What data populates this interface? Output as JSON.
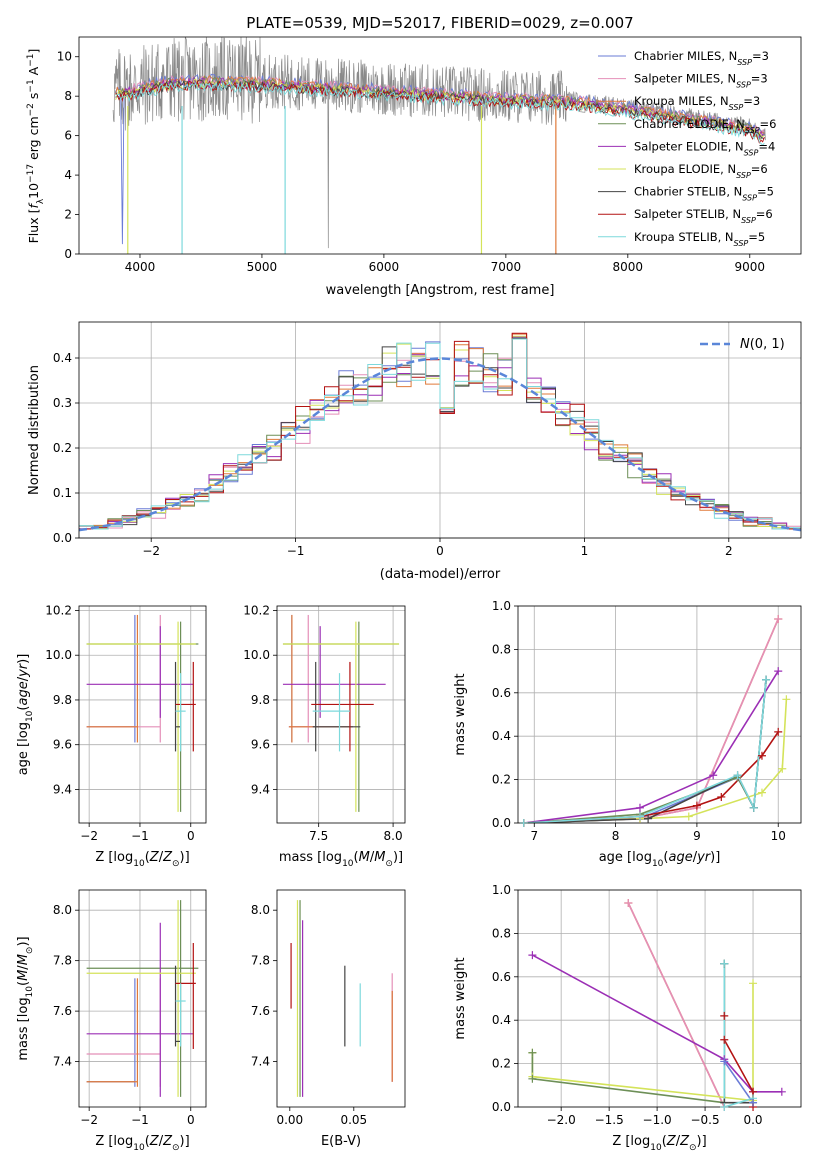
{
  "title": "PLATE=0539, MJD=52017, FIBERID=0029, z=0.007",
  "colors": {
    "c1": "#6a7bd6",
    "c2": "#e48fb8",
    "c3": "#e07a3a",
    "c4": "#6d8f57",
    "c5": "#9b2fb5",
    "c6": "#d4e35a",
    "c7": "#444444",
    "c8": "#b31212",
    "c9": "#7dd9dc",
    "normal": "#5a86d8",
    "data": "#8a8a8a"
  },
  "chart_data": [
    {
      "id": "spectrum",
      "type": "line",
      "xlabel": "wavelength [Angstrom, rest frame]",
      "ylabel": "Flux [f_λ 10^-17 erg cm^-2 s^-1 A^-1]",
      "xlim": [
        3500,
        9420
      ],
      "ylim": [
        0,
        11
      ],
      "xticks": [
        4000,
        5000,
        6000,
        7000,
        8000,
        9000
      ],
      "yticks": [
        0,
        2,
        4,
        6,
        8,
        10
      ],
      "grid": false,
      "legend_position": "top-right",
      "series": [
        {
          "name": "Chabrier MILES, N_SSP=3",
          "color": "c1"
        },
        {
          "name": "Salpeter MILES, N_SSP=3",
          "color": "c2"
        },
        {
          "name": "Kroupa MILES, N_SSP=3",
          "color": "c3"
        },
        {
          "name": "Chabrier ELODIE, N_SSP=6",
          "color": "c4"
        },
        {
          "name": "Salpeter ELODIE, N_SSP=4",
          "color": "c5"
        },
        {
          "name": "Kroupa ELODIE, N_SSP=6",
          "color": "c6"
        },
        {
          "name": "Chabrier STELIB, N_SSP=5",
          "color": "c7"
        },
        {
          "name": "Salpeter STELIB, N_SSP=6",
          "color": "c8"
        },
        {
          "name": "Kroupa STELIB, N_SSP=5",
          "color": "c9"
        }
      ],
      "continuum": [
        [
          3800,
          8.3
        ],
        [
          4000,
          8.5
        ],
        [
          4200,
          8.8
        ],
        [
          4500,
          8.9
        ],
        [
          5000,
          8.8
        ],
        [
          5500,
          8.6
        ],
        [
          6000,
          8.4
        ],
        [
          6500,
          8.2
        ],
        [
          7000,
          8.0
        ],
        [
          7500,
          7.9
        ],
        [
          8000,
          7.5
        ],
        [
          8500,
          7.0
        ],
        [
          9000,
          6.5
        ],
        [
          9130,
          6.0
        ]
      ]
    },
    {
      "id": "residuals",
      "type": "line",
      "xlabel": "(data-model)/error",
      "ylabel": "Normed distribution",
      "xlim": [
        -2.5,
        2.5
      ],
      "ylim": [
        0,
        0.48
      ],
      "xticks": [
        -2,
        -1,
        0,
        1,
        2
      ],
      "yticks": [
        0.0,
        0.1,
        0.2,
        0.3,
        0.4
      ],
      "grid": true,
      "legend": "N(0,1)",
      "legend_position": "top-right",
      "hist_bins": [
        -2.5,
        2.5,
        0.1
      ]
    },
    {
      "id": "age-vs-Z",
      "type": "scatter",
      "xlabel": "Z [log10(Z/Z⊙)]",
      "ylabel": "age  [log10(age/yr)]",
      "xlim": [
        -2.2,
        0.3
      ],
      "ylim": [
        9.25,
        10.22
      ],
      "xticks": [
        -2,
        -1,
        0
      ],
      "yticks": [
        9.4,
        9.6,
        9.8,
        10.0,
        10.2
      ],
      "grid": true
    },
    {
      "id": "age-vs-mass",
      "type": "scatter",
      "xlabel": "mass [log10(M/M⊙)]",
      "ylabel": "",
      "xlim": [
        7.22,
        8.08
      ],
      "ylim": [
        9.25,
        10.22
      ],
      "xticks": [
        7.5,
        8.0
      ],
      "yticks": [
        9.4,
        9.6,
        9.8,
        10.0,
        10.2
      ],
      "grid": true
    },
    {
      "id": "weight-vs-age",
      "type": "line",
      "xlabel": "age  [log10(age/yr)]",
      "ylabel": "mass weight",
      "xlim": [
        6.8,
        10.28
      ],
      "ylim": [
        0,
        1.0
      ],
      "xticks": [
        7,
        8,
        9,
        10
      ],
      "yticks": [
        0.0,
        0.2,
        0.4,
        0.6,
        0.8,
        1.0
      ],
      "grid": true
    },
    {
      "id": "mass-vs-Z",
      "type": "scatter",
      "xlabel": "Z [log10(Z/Z⊙)]",
      "ylabel": "mass [log10(M/M⊙)]",
      "xlim": [
        -2.2,
        0.3
      ],
      "ylim": [
        7.22,
        8.08
      ],
      "xticks": [
        -2,
        -1,
        0
      ],
      "yticks": [
        7.4,
        7.6,
        7.8,
        8.0
      ],
      "grid": true
    },
    {
      "id": "mass-vs-ebv",
      "type": "scatter",
      "xlabel": "E(B-V)",
      "ylabel": "",
      "xlim": [
        -0.01,
        0.09
      ],
      "ylim": [
        7.22,
        8.08
      ],
      "xticks": [
        0.0,
        0.05
      ],
      "yticks": [
        7.4,
        7.6,
        7.8,
        8.0
      ],
      "grid": false
    },
    {
      "id": "weight-vs-Z",
      "type": "line",
      "xlabel": "Z [log10(Z/Z⊙)]",
      "ylabel": "mass weight",
      "xlim": [
        -2.45,
        0.5
      ],
      "ylim": [
        0,
        1.0
      ],
      "xticks": [
        -2.0,
        -1.5,
        -1.0,
        -0.5,
        0.0
      ],
      "yticks": [
        0.0,
        0.2,
        0.4,
        0.6,
        0.8,
        1.0
      ],
      "grid": true
    }
  ],
  "fits": [
    {
      "c": "c1",
      "Z": -1.1,
      "Zl": -2.05,
      "Zh": -1.1,
      "age": 9.68,
      "al": 9.61,
      "ah": 10.18,
      "m": 7.32,
      "ml": 7.3,
      "mh": 7.73,
      "ebv": 0.08,
      "el": 7.32,
      "eh": 7.68
    },
    {
      "c": "c2",
      "Z": -0.6,
      "Zl": -2.05,
      "Zh": -0.6,
      "age": 9.68,
      "al": 9.61,
      "ah": 10.18,
      "m": 7.43,
      "ml": 7.3,
      "mh": 7.73,
      "ebv": 0.08,
      "el": 7.32,
      "eh": 7.75
    },
    {
      "c": "c3",
      "Z": -1.05,
      "Zl": -2.05,
      "Zh": -1.05,
      "age": 9.68,
      "al": 9.61,
      "ah": 10.18,
      "m": 7.32,
      "ml": 7.3,
      "mh": 7.73,
      "ebv": 0.08,
      "el": 7.32,
      "eh": 7.68
    },
    {
      "c": "c4",
      "Z": -0.2,
      "Zl": -2.05,
      "Zh": 0.15,
      "age": 10.05,
      "al": 9.3,
      "ah": 10.15,
      "m": 7.77,
      "ml": 7.26,
      "mh": 8.04,
      "ebv": 0.008,
      "el": 7.26,
      "eh": 8.04
    },
    {
      "c": "c5",
      "Z": -0.6,
      "Zl": -2.05,
      "Zh": 0.05,
      "age": 9.87,
      "al": 9.72,
      "ah": 10.13,
      "m": 7.51,
      "ml": 7.26,
      "mh": 7.95,
      "ebv": 0.01,
      "el": 7.26,
      "eh": 7.96
    },
    {
      "c": "c6",
      "Z": -0.25,
      "Zl": -2.05,
      "Zh": 0.1,
      "age": 10.05,
      "al": 9.3,
      "ah": 10.15,
      "m": 7.75,
      "ml": 7.26,
      "mh": 8.04,
      "ebv": 0.006,
      "el": 7.26,
      "eh": 8.04
    },
    {
      "c": "c7",
      "Z": -0.3,
      "Zl": -0.3,
      "Zh": -0.2,
      "age": 9.68,
      "al": 9.57,
      "ah": 9.97,
      "m": 7.48,
      "ml": 7.46,
      "mh": 7.78,
      "ebv": 0.043,
      "el": 7.46,
      "eh": 7.78
    },
    {
      "c": "c8",
      "Z": 0.05,
      "Zl": -0.3,
      "Zh": 0.1,
      "age": 9.78,
      "al": 9.57,
      "ah": 9.97,
      "m": 7.71,
      "ml": 7.45,
      "mh": 7.87,
      "ebv": 0.001,
      "el": 7.61,
      "eh": 7.87
    },
    {
      "c": "c9",
      "Z": -0.2,
      "Zl": -0.3,
      "Zh": -0.1,
      "age": 9.75,
      "al": 9.57,
      "ah": 9.92,
      "m": 7.64,
      "ml": 7.46,
      "mh": 7.71,
      "ebv": 0.055,
      "el": 7.46,
      "eh": 7.71
    }
  ],
  "weights_age": [
    {
      "c": "c1",
      "pts": [
        [
          6.87,
          0
        ],
        [
          8.3,
          0.02
        ],
        [
          9.5,
          0.21
        ],
        [
          9.7,
          0.07
        ],
        [
          9.85,
          0.66
        ]
      ]
    },
    {
      "c": "c3",
      "pts": [
        [
          6.87,
          0
        ],
        [
          8.3,
          0.02
        ],
        [
          9.0,
          0.07
        ],
        [
          10.0,
          0.94
        ]
      ]
    },
    {
      "c": "c2",
      "pts": [
        [
          6.87,
          0
        ],
        [
          8.3,
          0.02
        ],
        [
          9.0,
          0.07
        ],
        [
          10.0,
          0.94
        ]
      ]
    },
    {
      "c": "c4",
      "pts": [
        [
          6.87,
          0
        ],
        [
          8.3,
          0.04
        ],
        [
          9.5,
          0.21
        ],
        [
          9.7,
          0.07
        ],
        [
          9.85,
          0.66
        ]
      ]
    },
    {
      "c": "c5",
      "pts": [
        [
          6.87,
          0
        ],
        [
          8.3,
          0.07
        ],
        [
          9.2,
          0.22
        ],
        [
          10.0,
          0.7
        ]
      ]
    },
    {
      "c": "c6",
      "pts": [
        [
          6.87,
          0
        ],
        [
          8.3,
          0.02
        ],
        [
          8.9,
          0.03
        ],
        [
          9.8,
          0.14
        ],
        [
          10.05,
          0.25
        ],
        [
          10.1,
          0.57
        ]
      ]
    },
    {
      "c": "c7",
      "pts": [
        [
          6.87,
          0
        ],
        [
          8.4,
          0.02
        ],
        [
          9.5,
          0.22
        ],
        [
          9.7,
          0.07
        ],
        [
          9.85,
          0.66
        ]
      ]
    },
    {
      "c": "c8",
      "pts": [
        [
          6.87,
          0
        ],
        [
          8.3,
          0.03
        ],
        [
          9.0,
          0.08
        ],
        [
          9.3,
          0.12
        ],
        [
          9.8,
          0.31
        ],
        [
          10.0,
          0.42
        ]
      ]
    },
    {
      "c": "c9",
      "pts": [
        [
          6.87,
          0
        ],
        [
          8.3,
          0.03
        ],
        [
          9.5,
          0.22
        ],
        [
          9.7,
          0.07
        ],
        [
          9.85,
          0.66
        ]
      ]
    }
  ],
  "weights_Z": [
    {
      "c": "c3",
      "pts": [
        [
          -1.3,
          0.94
        ],
        [
          -0.3,
          0
        ]
      ]
    },
    {
      "c": "c2",
      "pts": [
        [
          -1.3,
          0.94
        ],
        [
          -0.3,
          0
        ]
      ]
    },
    {
      "c": "c5",
      "pts": [
        [
          -2.3,
          0.7
        ],
        [
          -0.3,
          0.22
        ],
        [
          0.0,
          0.07
        ],
        [
          0.3,
          0.07
        ]
      ]
    },
    {
      "c": "c6",
      "pts": [
        [
          -2.3,
          0.25
        ],
        [
          -2.3,
          0.14
        ],
        [
          0.0,
          0.03
        ],
        [
          0.0,
          0.57
        ]
      ]
    },
    {
      "c": "c4",
      "pts": [
        [
          -2.3,
          0.25
        ],
        [
          -2.3,
          0.13
        ],
        [
          -0.3,
          0.02
        ],
        [
          -0.3,
          0.66
        ]
      ]
    },
    {
      "c": "c7",
      "pts": [
        [
          -0.3,
          0.66
        ],
        [
          -0.3,
          0.02
        ],
        [
          0.0,
          0.02
        ]
      ]
    },
    {
      "c": "c8",
      "pts": [
        [
          -0.3,
          0.42
        ],
        [
          -0.3,
          0.31
        ],
        [
          0.0,
          0.07
        ],
        [
          0.0,
          0.0
        ]
      ]
    },
    {
      "c": "c9",
      "pts": [
        [
          -0.3,
          0.66
        ],
        [
          -0.3,
          0.0
        ],
        [
          0.0,
          0.04
        ]
      ]
    },
    {
      "c": "c1",
      "pts": [
        [
          -0.3,
          0.21
        ],
        [
          0.0,
          0.02
        ]
      ]
    }
  ]
}
